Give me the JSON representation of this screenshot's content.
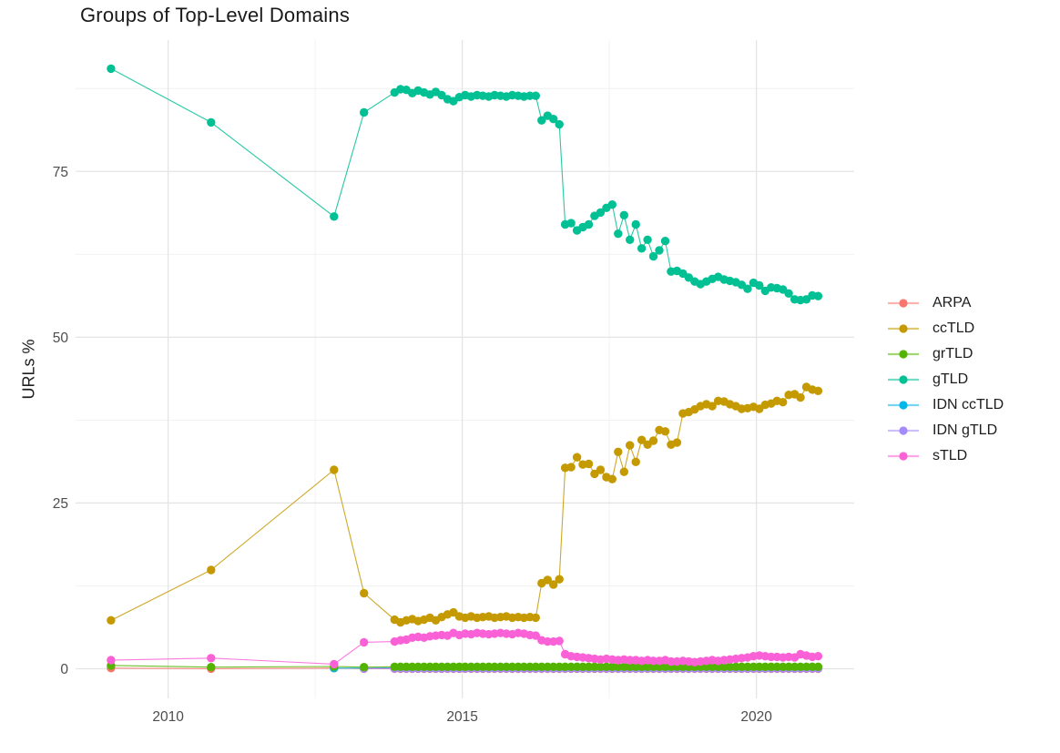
{
  "title": "Groups of Top-Level Domains",
  "y_axis": {
    "label": "URLs %",
    "ticks": [
      0,
      25,
      50,
      75
    ],
    "minor": [
      12.5,
      37.5,
      62.5,
      87.5
    ]
  },
  "x_axis": {
    "ticks": [
      2010,
      2015,
      2020
    ],
    "minor": [
      2012.5,
      2017.5
    ]
  },
  "colors": {
    "background": "#FFFFFF",
    "grid_major": "#E4E4E4",
    "grid_minor": "#F0F0F0",
    "tick_text": "#4D4D4D"
  },
  "legend": {
    "position": "right",
    "entries": [
      {
        "label": "ARPA",
        "color": "#F8766D"
      },
      {
        "label": "ccTLD",
        "color": "#C49A00"
      },
      {
        "label": "grTLD",
        "color": "#53B400"
      },
      {
        "label": "gTLD",
        "color": "#00C094"
      },
      {
        "label": "IDN ccTLD",
        "color": "#00B6EB"
      },
      {
        "label": "IDN gTLD",
        "color": "#A58AFF"
      },
      {
        "label": "sTLD",
        "color": "#FB61D7"
      }
    ]
  },
  "chart_data": {
    "type": "line",
    "markers": true,
    "title": "Groups of Top-Level Domains",
    "xlabel": "",
    "ylabel": "URLs %",
    "x_unit": "year",
    "xlim": [
      2008.4,
      2021.7
    ],
    "ylim": [
      -4.5,
      95
    ],
    "grid": true,
    "legend_position": "right",
    "series": [
      {
        "name": "ARPA",
        "color": "#F8766D",
        "points": [
          [
            2009.03,
            0.1
          ],
          [
            2010.73,
            0.02
          ],
          [
            2012.82,
            0.1
          ],
          [
            2013.33,
            0.02
          ]
        ],
        "dense": {
          "x_start": 2013.85,
          "x_step": 0.1,
          "count": 73,
          "constant": 0.02
        }
      },
      {
        "name": "ccTLD",
        "color": "#C49A00",
        "points": [
          [
            2009.03,
            7.3
          ],
          [
            2010.73,
            14.9
          ],
          [
            2012.82,
            30.0
          ],
          [
            2013.33,
            11.4
          ]
        ],
        "dense": {
          "x_start": 2013.85,
          "x_step": 0.1,
          "values": [
            7.4,
            7.0,
            7.3,
            7.5,
            7.2,
            7.4,
            7.7,
            7.3,
            7.8,
            8.2,
            8.5,
            7.9,
            7.7,
            7.9,
            7.7,
            7.8,
            7.9,
            7.7,
            7.8,
            7.9,
            7.7,
            7.8,
            7.7,
            7.8,
            7.7,
            12.9,
            13.4,
            12.7,
            13.5,
            30.3,
            30.4,
            31.9,
            30.8,
            30.9,
            29.4,
            30.0,
            28.9,
            28.6,
            32.7,
            29.7,
            33.7,
            31.2,
            34.5,
            33.8,
            34.4,
            36.0,
            35.8,
            33.8,
            34.1,
            38.5,
            38.7,
            39.1,
            39.6,
            39.9,
            39.6,
            40.4,
            40.3,
            39.9,
            39.6,
            39.2,
            39.3,
            39.5,
            39.2,
            39.8,
            40.0,
            40.4,
            40.2,
            41.3,
            41.4,
            40.9,
            42.5,
            42.1,
            41.9
          ]
        }
      },
      {
        "name": "grTLD",
        "color": "#53B400",
        "points": [
          [
            2009.03,
            0.5
          ],
          [
            2010.73,
            0.25
          ],
          [
            2012.82,
            0.35
          ],
          [
            2013.33,
            0.25
          ]
        ],
        "dense": {
          "x_start": 2013.85,
          "x_step": 0.1,
          "count": 73,
          "constant": 0.3
        }
      },
      {
        "name": "gTLD",
        "color": "#00C094",
        "points": [
          [
            2009.03,
            90.5
          ],
          [
            2010.73,
            82.4
          ],
          [
            2012.82,
            68.2
          ],
          [
            2013.33,
            83.9
          ]
        ],
        "dense": {
          "x_start": 2013.85,
          "x_step": 0.1,
          "values": [
            86.9,
            87.4,
            87.3,
            86.8,
            87.2,
            86.9,
            86.6,
            87.0,
            86.5,
            85.9,
            85.6,
            86.2,
            86.5,
            86.3,
            86.5,
            86.4,
            86.3,
            86.5,
            86.4,
            86.3,
            86.5,
            86.4,
            86.3,
            86.4,
            86.4,
            82.7,
            83.4,
            82.9,
            82.1,
            67.0,
            67.2,
            66.1,
            66.6,
            67.0,
            68.3,
            68.8,
            69.5,
            70.0,
            65.6,
            68.4,
            64.7,
            67.0,
            63.4,
            64.7,
            62.2,
            63.1,
            64.5,
            59.9,
            60.0,
            59.6,
            59.0,
            58.4,
            58.0,
            58.4,
            58.8,
            59.1,
            58.7,
            58.5,
            58.3,
            57.9,
            57.3,
            58.2,
            57.8,
            57.0,
            57.5,
            57.4,
            57.2,
            56.6,
            55.7,
            55.6,
            55.7,
            56.3,
            56.2
          ]
        }
      },
      {
        "name": "IDN ccTLD",
        "color": "#00B6EB",
        "points": [
          [
            2012.82,
            0.1
          ],
          [
            2013.33,
            0.1
          ]
        ],
        "dense": {
          "x_start": 2013.85,
          "x_step": 0.1,
          "count": 73,
          "constant": 0.15
        }
      },
      {
        "name": "IDN gTLD",
        "color": "#A58AFF",
        "points": [
          [
            2013.33,
            0.05
          ]
        ],
        "dense": {
          "x_start": 2013.85,
          "x_step": 0.1,
          "count": 73,
          "constant": 0.05
        }
      },
      {
        "name": "sTLD",
        "color": "#FB61D7",
        "points": [
          [
            2009.03,
            1.3
          ],
          [
            2010.73,
            1.6
          ],
          [
            2012.82,
            0.7
          ],
          [
            2013.33,
            4.0
          ]
        ],
        "dense": {
          "x_start": 2013.85,
          "x_step": 0.1,
          "values": [
            4.1,
            4.3,
            4.4,
            4.7,
            4.8,
            4.7,
            4.9,
            5.0,
            5.1,
            5.0,
            5.4,
            5.1,
            5.3,
            5.2,
            5.4,
            5.3,
            5.2,
            5.3,
            5.4,
            5.3,
            5.2,
            5.4,
            5.3,
            5.1,
            5.0,
            4.3,
            4.1,
            4.1,
            4.2,
            2.2,
            1.9,
            1.8,
            1.7,
            1.6,
            1.5,
            1.4,
            1.5,
            1.4,
            1.3,
            1.4,
            1.3,
            1.3,
            1.2,
            1.3,
            1.2,
            1.2,
            1.3,
            1.1,
            1.1,
            1.2,
            1.1,
            1.0,
            1.1,
            1.2,
            1.3,
            1.2,
            1.3,
            1.4,
            1.5,
            1.6,
            1.7,
            1.9,
            2.0,
            1.9,
            1.8,
            1.8,
            1.7,
            1.8,
            1.7,
            2.2,
            2.0,
            1.8,
            1.9
          ]
        }
      }
    ]
  }
}
